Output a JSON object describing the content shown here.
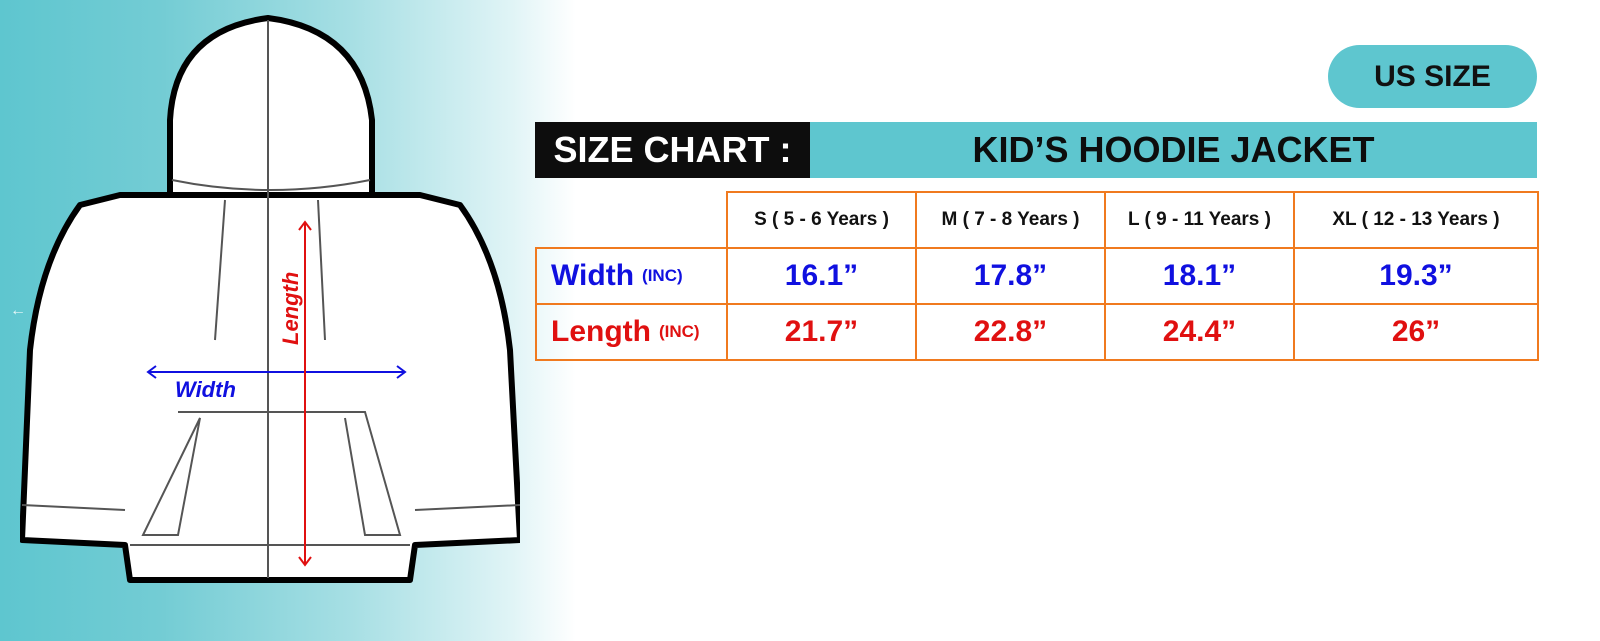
{
  "badge": "US SIZE",
  "title": {
    "left": "SIZE CHART :",
    "right": "KID’S HOODIE JACKET"
  },
  "diagram": {
    "width_label": "Width",
    "length_label": "Length"
  },
  "table": {
    "columns": [
      "S ( 5 - 6 Years )",
      "M ( 7 - 8 Years )",
      "L ( 9 - 11 Years )",
      "XL ( 12 - 13 Years )"
    ],
    "rows": [
      {
        "label": "Width",
        "unit": "(INC)",
        "values": [
          "16.1”",
          "17.8”",
          "18.1”",
          "19.3”"
        ],
        "color": "#1010e0"
      },
      {
        "label": "Length",
        "unit": "(INC)",
        "values": [
          "21.7”",
          "22.8”",
          "24.4”",
          "26”"
        ],
        "color": "#e01010"
      }
    ]
  },
  "colors": {
    "teal": "#5ec6cf",
    "border": "#f07a1f"
  }
}
